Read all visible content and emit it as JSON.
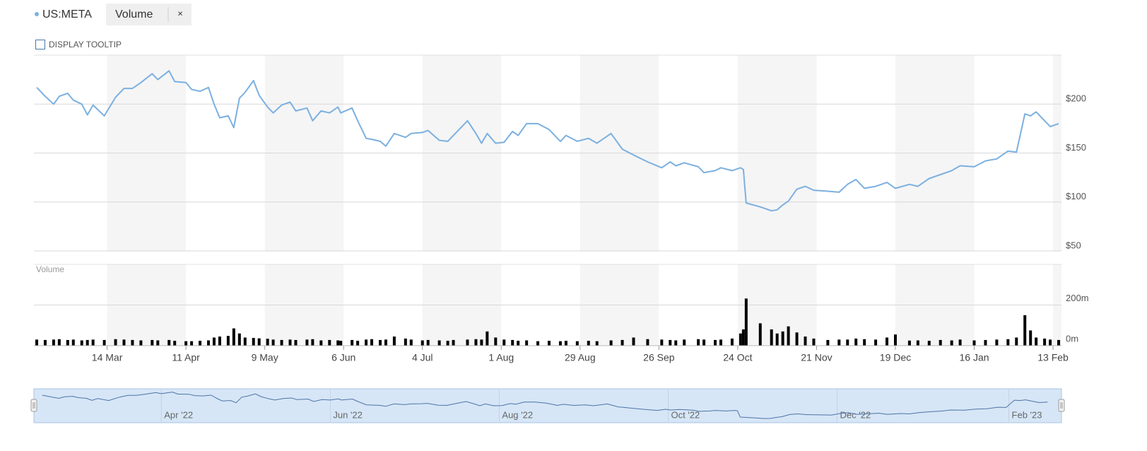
{
  "ui": {
    "close": "×",
    "tooltip_toggle": "DISPLAY TOOLTIP"
  },
  "chart_data": {
    "type": "line",
    "x": [
      "2022-02-17",
      "2022-02-20",
      "2022-02-23",
      "2022-02-25",
      "2022-02-28",
      "2022-03-02",
      "2022-03-05",
      "2022-03-07",
      "2022-03-09",
      "2022-03-13",
      "2022-03-17",
      "2022-03-20",
      "2022-03-23",
      "2022-03-26",
      "2022-03-30",
      "2022-04-01",
      "2022-04-05",
      "2022-04-07",
      "2022-04-11",
      "2022-04-13",
      "2022-04-16",
      "2022-04-19",
      "2022-04-21",
      "2022-04-23",
      "2022-04-26",
      "2022-04-28",
      "2022-04-30",
      "2022-05-02",
      "2022-05-05",
      "2022-05-07",
      "2022-05-10",
      "2022-05-12",
      "2022-05-15",
      "2022-05-18",
      "2022-05-20",
      "2022-05-24",
      "2022-05-26",
      "2022-05-29",
      "2022-06-01",
      "2022-06-04",
      "2022-06-05",
      "2022-06-09",
      "2022-06-11",
      "2022-06-14",
      "2022-06-16",
      "2022-06-19",
      "2022-06-21",
      "2022-06-24",
      "2022-06-28",
      "2022-06-30",
      "2022-07-04",
      "2022-07-06",
      "2022-07-10",
      "2022-07-13",
      "2022-07-15",
      "2022-07-20",
      "2022-07-23",
      "2022-07-25",
      "2022-07-27",
      "2022-07-30",
      "2022-08-02",
      "2022-08-05",
      "2022-08-07",
      "2022-08-10",
      "2022-08-14",
      "2022-08-18",
      "2022-08-22",
      "2022-08-24",
      "2022-08-28",
      "2022-09-01",
      "2022-09-04",
      "2022-09-09",
      "2022-09-13",
      "2022-09-17",
      "2022-09-22",
      "2022-09-27",
      "2022-09-30",
      "2022-10-02",
      "2022-10-05",
      "2022-10-10",
      "2022-10-12",
      "2022-10-16",
      "2022-10-18",
      "2022-10-22",
      "2022-10-25",
      "2022-10-26",
      "2022-10-27",
      "2022-11-01",
      "2022-11-05",
      "2022-11-07",
      "2022-11-09",
      "2022-11-11",
      "2022-11-14",
      "2022-11-17",
      "2022-11-20",
      "2022-11-25",
      "2022-11-29",
      "2022-12-02",
      "2022-12-05",
      "2022-12-08",
      "2022-12-12",
      "2022-12-16",
      "2022-12-19",
      "2022-12-24",
      "2022-12-27",
      "2022-12-31",
      "2023-01-04",
      "2023-01-08",
      "2023-01-11",
      "2023-01-16",
      "2023-01-20",
      "2023-01-24",
      "2023-01-28",
      "2023-01-31",
      "2023-02-03",
      "2023-02-05",
      "2023-02-07",
      "2023-02-10",
      "2023-02-12",
      "2023-02-15"
    ],
    "series": [
      {
        "name": "US:META",
        "color": "#7cb0e0",
        "values": [
          217,
          208,
          200,
          208,
          211,
          204,
          200,
          189,
          199,
          188,
          207,
          216,
          216,
          222,
          231,
          225,
          234,
          223,
          222,
          215,
          213,
          217,
          200,
          186,
          188,
          176,
          206,
          212,
          224,
          209,
          197,
          191,
          199,
          202,
          193,
          196,
          183,
          193,
          191,
          197,
          191,
          196,
          183,
          165,
          164,
          162,
          157,
          170,
          166,
          170,
          171,
          173,
          163,
          162,
          168,
          183,
          170,
          160,
          170,
          160,
          161,
          172,
          168,
          180,
          180,
          174,
          162,
          168,
          162,
          165,
          160,
          170,
          154,
          148,
          141,
          135,
          141,
          137,
          140,
          136,
          130,
          132,
          135,
          132,
          135,
          133,
          99,
          95,
          91,
          92,
          97,
          101,
          113,
          116,
          112,
          111,
          110,
          118,
          123,
          114,
          116,
          120,
          114,
          118,
          116,
          124,
          128,
          132,
          137,
          136,
          142,
          144,
          152,
          151,
          190,
          188,
          192,
          183,
          177,
          180
        ]
      },
      {
        "name": "Volume",
        "type": "bar",
        "axis": "y2",
        "color": "#000000",
        "values": [
          30,
          28,
          30,
          32,
          28,
          30,
          26,
          28,
          30,
          28,
          32,
          30,
          28,
          26,
          28,
          26,
          28,
          24,
          22,
          22,
          24,
          26,
          40,
          45,
          48,
          85,
          60,
          40,
          38,
          36,
          34,
          30,
          28,
          30,
          28,
          30,
          32,
          26,
          28,
          26,
          24,
          28,
          24,
          30,
          32,
          28,
          30,
          45,
          35,
          30,
          26,
          28,
          26,
          24,
          28,
          30,
          32,
          30,
          70,
          40,
          30,
          28,
          24,
          26,
          22,
          24,
          22,
          24,
          22,
          24,
          22,
          26,
          28,
          40,
          32,
          30,
          28,
          26,
          30,
          32,
          30,
          28,
          30,
          35,
          60,
          80,
          232,
          110,
          80,
          60,
          70,
          95,
          65,
          45,
          35,
          28,
          30,
          30,
          35,
          32,
          30,
          40,
          55,
          25,
          26,
          24,
          28,
          26,
          30,
          26,
          28,
          30,
          32,
          40,
          150,
          75,
          40,
          35,
          30,
          28
        ]
      }
    ],
    "xlim": [
      "2022-02-16",
      "2023-02-16"
    ],
    "xticks": [
      {
        "value": "2022-03-14",
        "label": "14 Mar"
      },
      {
        "value": "2022-04-11",
        "label": "11 Apr"
      },
      {
        "value": "2022-05-09",
        "label": "9 May"
      },
      {
        "value": "2022-06-06",
        "label": "6 Jun"
      },
      {
        "value": "2022-07-04",
        "label": "4 Jul"
      },
      {
        "value": "2022-08-01",
        "label": "1 Aug"
      },
      {
        "value": "2022-08-29",
        "label": "29 Aug"
      },
      {
        "value": "2022-09-26",
        "label": "26 Sep"
      },
      {
        "value": "2022-10-24",
        "label": "24 Oct"
      },
      {
        "value": "2022-11-21",
        "label": "21 Nov"
      },
      {
        "value": "2022-12-19",
        "label": "19 Dec"
      },
      {
        "value": "2023-01-16",
        "label": "16 Jan"
      },
      {
        "value": "2023-02-13",
        "label": "13 Feb"
      }
    ],
    "ylim": [
      50,
      250
    ],
    "yticks": [
      {
        "value": 50,
        "label": "$50"
      },
      {
        "value": 100,
        "label": "$100"
      },
      {
        "value": 150,
        "label": "$150"
      },
      {
        "value": 200,
        "label": "$200"
      }
    ],
    "y2lim": [
      0,
      400
    ],
    "y2ticks": [
      {
        "value": 0,
        "label": "0m"
      },
      {
        "value": 200,
        "label": "200m"
      }
    ],
    "grid": true
  },
  "navigator": {
    "xlim": [
      "2022-02-14",
      "2023-02-20"
    ],
    "ylim": [
      80,
      240
    ],
    "xticks": [
      {
        "value": "2022-04-01",
        "label": "Apr '22"
      },
      {
        "value": "2022-06-01",
        "label": "Jun '22"
      },
      {
        "value": "2022-08-01",
        "label": "Aug '22"
      },
      {
        "value": "2022-10-01",
        "label": "Oct '22"
      },
      {
        "value": "2022-12-01",
        "label": "Dec '22"
      },
      {
        "value": "2023-02-01",
        "label": "Feb '23"
      }
    ]
  }
}
